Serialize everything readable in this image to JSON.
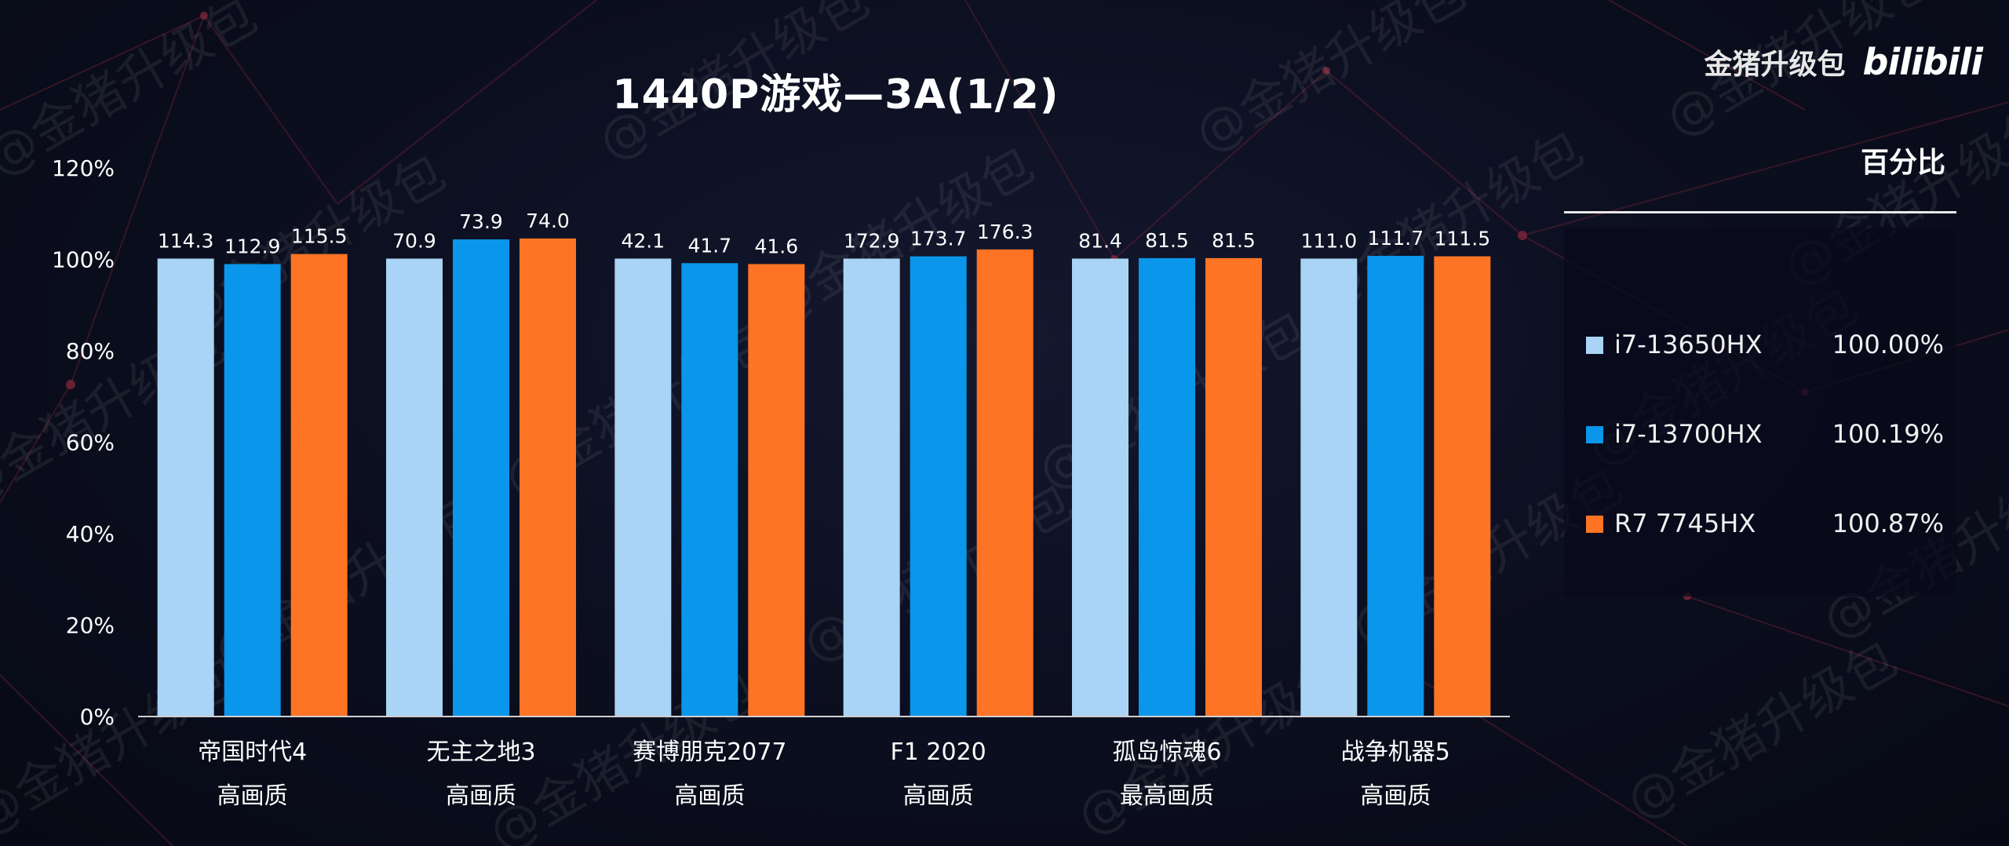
{
  "brand": {
    "name": "金猪升级包",
    "logo": "bilibili"
  },
  "watermark": "@金猪升级包",
  "chart_data": {
    "type": "bar",
    "title": "1440P游戏—3A(1/2)",
    "ylim": [
      0,
      120
    ],
    "yticks": [
      0,
      20,
      40,
      60,
      80,
      100,
      120
    ],
    "ytick_suffix": "%",
    "grid": false,
    "categories": [
      {
        "name": "帝国时代4",
        "quality": "高画质"
      },
      {
        "name": "无主之地3",
        "quality": "高画质"
      },
      {
        "name": "赛博朋克2077",
        "quality": "高画质"
      },
      {
        "name": "F1 2020",
        "quality": "高画质"
      },
      {
        "name": "孤岛惊魂6",
        "quality": "最高画质"
      },
      {
        "name": "战争机器5",
        "quality": "高画质"
      }
    ],
    "series": [
      {
        "name": "i7-13650HX",
        "color": "#a9d4f5",
        "fps": [
          "114.3",
          "70.9",
          "42.1",
          "172.9",
          "81.4",
          "111.0"
        ],
        "percent": [
          100,
          100,
          100,
          100,
          100,
          100
        ]
      },
      {
        "name": "i7-13700HX",
        "color": "#0a96ea",
        "fps": [
          "112.9",
          "73.9",
          "41.7",
          "173.7",
          "81.5",
          "111.7"
        ],
        "percent": [
          98.8,
          104.2,
          99.0,
          100.5,
          100.1,
          100.6
        ]
      },
      {
        "name": "R7 7745HX",
        "color": "#fe7424",
        "fps": [
          "115.5",
          "74.0",
          "41.6",
          "176.3",
          "81.5",
          "111.5"
        ],
        "percent": [
          101.0,
          104.4,
          98.8,
          102.0,
          100.1,
          100.5
        ]
      }
    ],
    "legend": {
      "header": "百分比",
      "items": [
        {
          "name": "i7-13650HX",
          "value": "100.00%",
          "color": "#a9d4f5"
        },
        {
          "name": "i7-13700HX",
          "value": "100.19%",
          "color": "#0a96ea"
        },
        {
          "name": "R7 7745HX",
          "value": "100.87%",
          "color": "#fe7424"
        }
      ]
    }
  }
}
